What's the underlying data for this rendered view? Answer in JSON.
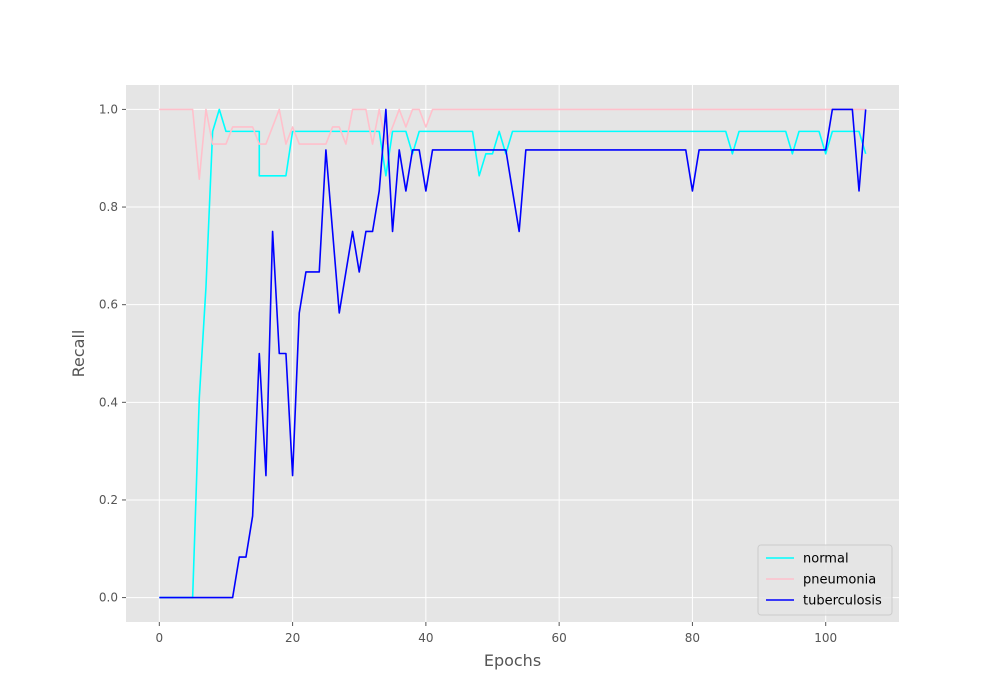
{
  "chart_data": {
    "type": "line",
    "title": "",
    "xlabel": "Epochs",
    "ylabel": "Recall",
    "xlim": [
      -5,
      111
    ],
    "ylim": [
      -0.05,
      1.05
    ],
    "x_ticks": [
      0,
      20,
      40,
      60,
      80,
      100
    ],
    "y_ticks": [
      0.0,
      0.2,
      0.4,
      0.6,
      0.8,
      1.0
    ],
    "x_tick_labels": [
      "0",
      "20",
      "40",
      "60",
      "80",
      "100"
    ],
    "y_tick_labels": [
      "0.0",
      "0.2",
      "0.4",
      "0.6",
      "0.8",
      "1.0"
    ],
    "grid": true,
    "legend_position": "bottom-right",
    "background": "#e5e5e5",
    "series": [
      {
        "name": "normal",
        "color": "#00ffff",
        "points": [
          [
            0,
            0
          ],
          [
            5,
            0
          ],
          [
            6,
            0.409
          ],
          [
            7,
            0.636
          ],
          [
            8,
            0.955
          ],
          [
            9,
            1.0
          ],
          [
            10,
            0.955
          ],
          [
            15,
            0.955
          ],
          [
            15,
            0.864
          ],
          [
            19,
            0.864
          ],
          [
            20,
            0.955
          ],
          [
            33,
            0.955
          ],
          [
            34,
            0.864
          ],
          [
            35,
            0.955
          ],
          [
            37,
            0.955
          ],
          [
            38,
            0.909
          ],
          [
            39,
            0.955
          ],
          [
            47,
            0.955
          ],
          [
            48,
            0.864
          ],
          [
            49,
            0.909
          ],
          [
            50,
            0.909
          ],
          [
            51,
            0.955
          ],
          [
            52,
            0.909
          ],
          [
            53,
            0.955
          ],
          [
            85,
            0.955
          ],
          [
            86,
            0.909
          ],
          [
            87,
            0.955
          ],
          [
            94,
            0.955
          ],
          [
            95,
            0.909
          ],
          [
            96,
            0.955
          ],
          [
            99,
            0.955
          ],
          [
            100,
            0.909
          ],
          [
            101,
            0.955
          ],
          [
            105,
            0.955
          ],
          [
            106,
            0.909
          ]
        ]
      },
      {
        "name": "pneumonia",
        "color": "#ffc0cb",
        "points": [
          [
            0,
            1.0
          ],
          [
            5,
            1.0
          ],
          [
            6,
            0.857
          ],
          [
            7,
            1.0
          ],
          [
            8,
            0.929
          ],
          [
            10,
            0.929
          ],
          [
            11,
            0.964
          ],
          [
            14,
            0.964
          ],
          [
            15,
            0.929
          ],
          [
            16,
            0.929
          ],
          [
            18,
            1.0
          ],
          [
            19,
            0.929
          ],
          [
            20,
            0.964
          ],
          [
            21,
            0.929
          ],
          [
            25,
            0.929
          ],
          [
            26,
            0.964
          ],
          [
            27,
            0.964
          ],
          [
            28,
            0.929
          ],
          [
            29,
            1.0
          ],
          [
            31,
            1.0
          ],
          [
            32,
            0.929
          ],
          [
            33,
            1.0
          ],
          [
            34,
            0.929
          ],
          [
            35,
            0.964
          ],
          [
            36,
            1.0
          ],
          [
            37,
            0.964
          ],
          [
            38,
            1.0
          ],
          [
            39,
            1.0
          ],
          [
            40,
            0.964
          ],
          [
            41,
            1.0
          ],
          [
            106,
            1.0
          ]
        ]
      },
      {
        "name": "tuberculosis",
        "color": "#0000ff",
        "points": [
          [
            0,
            0
          ],
          [
            11,
            0
          ],
          [
            12,
            0.083
          ],
          [
            13,
            0.083
          ],
          [
            14,
            0.167
          ],
          [
            15,
            0.5
          ],
          [
            16,
            0.25
          ],
          [
            17,
            0.75
          ],
          [
            18,
            0.5
          ],
          [
            19,
            0.5
          ],
          [
            20,
            0.25
          ],
          [
            21,
            0.583
          ],
          [
            22,
            0.667
          ],
          [
            24,
            0.667
          ],
          [
            25,
            0.917
          ],
          [
            26,
            0.75
          ],
          [
            27,
            0.583
          ],
          [
            28,
            0.667
          ],
          [
            29,
            0.75
          ],
          [
            30,
            0.667
          ],
          [
            31,
            0.75
          ],
          [
            32,
            0.75
          ],
          [
            33,
            0.833
          ],
          [
            34,
            1.0
          ],
          [
            35,
            0.75
          ],
          [
            36,
            0.917
          ],
          [
            37,
            0.833
          ],
          [
            38,
            0.917
          ],
          [
            39,
            0.917
          ],
          [
            40,
            0.833
          ],
          [
            41,
            0.917
          ],
          [
            52,
            0.917
          ],
          [
            53,
            0.833
          ],
          [
            54,
            0.75
          ],
          [
            55,
            0.917
          ],
          [
            79,
            0.917
          ],
          [
            80,
            0.833
          ],
          [
            81,
            0.917
          ],
          [
            100,
            0.917
          ],
          [
            101,
            1.0
          ],
          [
            104,
            1.0
          ],
          [
            105,
            0.833
          ],
          [
            106,
            1.0
          ]
        ]
      }
    ]
  }
}
